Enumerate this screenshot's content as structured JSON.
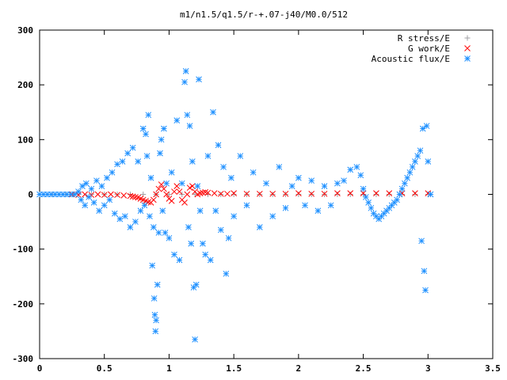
{
  "chart_data": {
    "type": "scatter",
    "title": "m1/n1.5/q1.5/r-+.07-j40/M0.0/512",
    "xlabel": "",
    "ylabel": "",
    "xlim": [
      0,
      3.5
    ],
    "ylim": [
      -300,
      300
    ],
    "xticks": [
      0,
      0.5,
      1,
      1.5,
      2,
      2.5,
      3,
      3.5
    ],
    "yticks": [
      -300,
      -200,
      -100,
      0,
      100,
      200,
      300
    ],
    "xtick_labels": [
      "0",
      "0.5",
      "1",
      "1.5",
      "2",
      "2.5",
      "3",
      "3.5"
    ],
    "ytick_labels": [
      "-300",
      "-200",
      "-100",
      "0",
      "100",
      "200",
      "300"
    ],
    "grid": false,
    "legend_position": "top-right",
    "series": [
      {
        "name": "R stress/E",
        "marker": "plus",
        "color": "#a0a0a4",
        "points": [
          [
            0.0,
            0
          ],
          [
            0.1,
            0
          ],
          [
            0.2,
            0
          ],
          [
            0.3,
            0
          ],
          [
            0.4,
            0
          ],
          [
            0.5,
            0
          ],
          [
            0.6,
            0
          ],
          [
            0.7,
            0
          ],
          [
            0.8,
            0
          ],
          [
            0.9,
            0
          ],
          [
            1.0,
            0
          ],
          [
            1.1,
            0
          ],
          [
            1.2,
            0
          ],
          [
            1.3,
            0
          ],
          [
            1.4,
            0
          ],
          [
            1.5,
            0
          ],
          [
            1.6,
            0
          ],
          [
            1.7,
            0
          ],
          [
            1.8,
            0
          ],
          [
            1.9,
            0
          ],
          [
            2.0,
            0
          ],
          [
            2.1,
            0
          ],
          [
            2.2,
            0
          ],
          [
            2.3,
            0
          ],
          [
            2.4,
            0
          ],
          [
            2.5,
            0
          ],
          [
            2.6,
            0
          ],
          [
            2.7,
            0
          ],
          [
            2.8,
            0
          ],
          [
            2.9,
            0
          ],
          [
            3.0,
            0
          ]
        ]
      },
      {
        "name": "G work/E",
        "marker": "cross",
        "color": "#ff0000",
        "points": [
          [
            0.25,
            0
          ],
          [
            0.3,
            -1
          ],
          [
            0.35,
            0
          ],
          [
            0.4,
            -1
          ],
          [
            0.45,
            0
          ],
          [
            0.5,
            -1
          ],
          [
            0.55,
            0
          ],
          [
            0.6,
            -1
          ],
          [
            0.65,
            -2
          ],
          [
            0.7,
            -3
          ],
          [
            0.72,
            -4
          ],
          [
            0.74,
            -5
          ],
          [
            0.76,
            -6
          ],
          [
            0.78,
            -8
          ],
          [
            0.8,
            -10
          ],
          [
            0.82,
            -12
          ],
          [
            0.84,
            -14
          ],
          [
            0.86,
            -15
          ],
          [
            0.88,
            -10
          ],
          [
            0.9,
            0
          ],
          [
            0.92,
            10
          ],
          [
            0.94,
            18
          ],
          [
            0.96,
            10
          ],
          [
            0.98,
            0
          ],
          [
            1.0,
            -8
          ],
          [
            1.02,
            -12
          ],
          [
            1.04,
            5
          ],
          [
            1.06,
            15
          ],
          [
            1.08,
            5
          ],
          [
            1.1,
            -10
          ],
          [
            1.12,
            -15
          ],
          [
            1.14,
            0
          ],
          [
            1.16,
            12
          ],
          [
            1.18,
            15
          ],
          [
            1.2,
            5
          ],
          [
            1.22,
            0
          ],
          [
            1.24,
            2
          ],
          [
            1.26,
            3
          ],
          [
            1.28,
            4
          ],
          [
            1.3,
            3
          ],
          [
            1.35,
            2
          ],
          [
            1.4,
            1
          ],
          [
            1.45,
            1
          ],
          [
            1.5,
            2
          ],
          [
            1.6,
            1
          ],
          [
            1.7,
            1
          ],
          [
            1.8,
            1
          ],
          [
            1.9,
            1
          ],
          [
            2.0,
            2
          ],
          [
            2.1,
            1
          ],
          [
            2.2,
            1
          ],
          [
            2.3,
            2
          ],
          [
            2.4,
            2
          ],
          [
            2.5,
            2
          ],
          [
            2.6,
            2
          ],
          [
            2.7,
            2
          ],
          [
            2.8,
            2
          ],
          [
            2.9,
            2
          ],
          [
            3.0,
            2
          ]
        ]
      },
      {
        "name": "Acoustic flux/E",
        "marker": "star",
        "color": "#1e90ff",
        "points": [
          [
            0.0,
            0
          ],
          [
            0.03,
            0
          ],
          [
            0.06,
            0
          ],
          [
            0.09,
            0
          ],
          [
            0.12,
            0
          ],
          [
            0.15,
            0
          ],
          [
            0.18,
            0
          ],
          [
            0.21,
            0
          ],
          [
            0.24,
            0
          ],
          [
            0.27,
            0
          ],
          [
            0.3,
            5
          ],
          [
            0.32,
            -10
          ],
          [
            0.33,
            15
          ],
          [
            0.35,
            -20
          ],
          [
            0.36,
            20
          ],
          [
            0.38,
            -5
          ],
          [
            0.4,
            10
          ],
          [
            0.42,
            -15
          ],
          [
            0.44,
            25
          ],
          [
            0.46,
            -30
          ],
          [
            0.48,
            15
          ],
          [
            0.5,
            -20
          ],
          [
            0.52,
            30
          ],
          [
            0.54,
            -10
          ],
          [
            0.56,
            40
          ],
          [
            0.58,
            -35
          ],
          [
            0.6,
            55
          ],
          [
            0.62,
            -45
          ],
          [
            0.64,
            60
          ],
          [
            0.66,
            -40
          ],
          [
            0.68,
            75
          ],
          [
            0.7,
            -60
          ],
          [
            0.72,
            85
          ],
          [
            0.74,
            -50
          ],
          [
            0.76,
            60
          ],
          [
            0.78,
            -30
          ],
          [
            0.8,
            120
          ],
          [
            0.81,
            -20
          ],
          [
            0.82,
            110
          ],
          [
            0.83,
            70
          ],
          [
            0.84,
            145
          ],
          [
            0.85,
            -40
          ],
          [
            0.86,
            30
          ],
          [
            0.87,
            -130
          ],
          [
            0.88,
            -60
          ],
          [
            0.885,
            -190
          ],
          [
            0.89,
            -220
          ],
          [
            0.895,
            -250
          ],
          [
            0.9,
            -230
          ],
          [
            0.91,
            -165
          ],
          [
            0.92,
            -70
          ],
          [
            0.93,
            75
          ],
          [
            0.94,
            100
          ],
          [
            0.95,
            -30
          ],
          [
            0.96,
            120
          ],
          [
            0.97,
            -70
          ],
          [
            0.98,
            20
          ],
          [
            1.0,
            -80
          ],
          [
            1.02,
            40
          ],
          [
            1.04,
            -110
          ],
          [
            1.06,
            135
          ],
          [
            1.08,
            -120
          ],
          [
            1.1,
            20
          ],
          [
            1.12,
            205
          ],
          [
            1.13,
            225
          ],
          [
            1.14,
            145
          ],
          [
            1.15,
            -60
          ],
          [
            1.16,
            125
          ],
          [
            1.17,
            -90
          ],
          [
            1.18,
            60
          ],
          [
            1.19,
            -170
          ],
          [
            1.2,
            -265
          ],
          [
            1.21,
            -165
          ],
          [
            1.22,
            15
          ],
          [
            1.23,
            210
          ],
          [
            1.24,
            -30
          ],
          [
            1.26,
            -90
          ],
          [
            1.28,
            -110
          ],
          [
            1.3,
            70
          ],
          [
            1.32,
            -120
          ],
          [
            1.34,
            150
          ],
          [
            1.36,
            -30
          ],
          [
            1.38,
            90
          ],
          [
            1.4,
            -65
          ],
          [
            1.42,
            50
          ],
          [
            1.44,
            -145
          ],
          [
            1.46,
            -80
          ],
          [
            1.48,
            30
          ],
          [
            1.5,
            -40
          ],
          [
            1.55,
            70
          ],
          [
            1.6,
            -20
          ],
          [
            1.65,
            40
          ],
          [
            1.7,
            -60
          ],
          [
            1.75,
            20
          ],
          [
            1.8,
            -40
          ],
          [
            1.85,
            50
          ],
          [
            1.9,
            -25
          ],
          [
            1.95,
            15
          ],
          [
            2.0,
            30
          ],
          [
            2.05,
            -20
          ],
          [
            2.1,
            25
          ],
          [
            2.15,
            -30
          ],
          [
            2.2,
            15
          ],
          [
            2.25,
            -20
          ],
          [
            2.3,
            20
          ],
          [
            2.35,
            25
          ],
          [
            2.4,
            45
          ],
          [
            2.45,
            50
          ],
          [
            2.48,
            35
          ],
          [
            2.5,
            10
          ],
          [
            2.52,
            -5
          ],
          [
            2.54,
            -15
          ],
          [
            2.56,
            -25
          ],
          [
            2.58,
            -35
          ],
          [
            2.6,
            -40
          ],
          [
            2.62,
            -45
          ],
          [
            2.64,
            -40
          ],
          [
            2.66,
            -35
          ],
          [
            2.68,
            -30
          ],
          [
            2.7,
            -25
          ],
          [
            2.72,
            -20
          ],
          [
            2.74,
            -15
          ],
          [
            2.76,
            -10
          ],
          [
            2.78,
            0
          ],
          [
            2.8,
            10
          ],
          [
            2.82,
            20
          ],
          [
            2.84,
            30
          ],
          [
            2.86,
            40
          ],
          [
            2.88,
            50
          ],
          [
            2.9,
            60
          ],
          [
            2.92,
            70
          ],
          [
            2.94,
            80
          ],
          [
            2.95,
            -85
          ],
          [
            2.96,
            120
          ],
          [
            2.97,
            -140
          ],
          [
            2.98,
            -175
          ],
          [
            2.99,
            125
          ],
          [
            3.0,
            60
          ],
          [
            3.02,
            0
          ]
        ]
      }
    ]
  }
}
